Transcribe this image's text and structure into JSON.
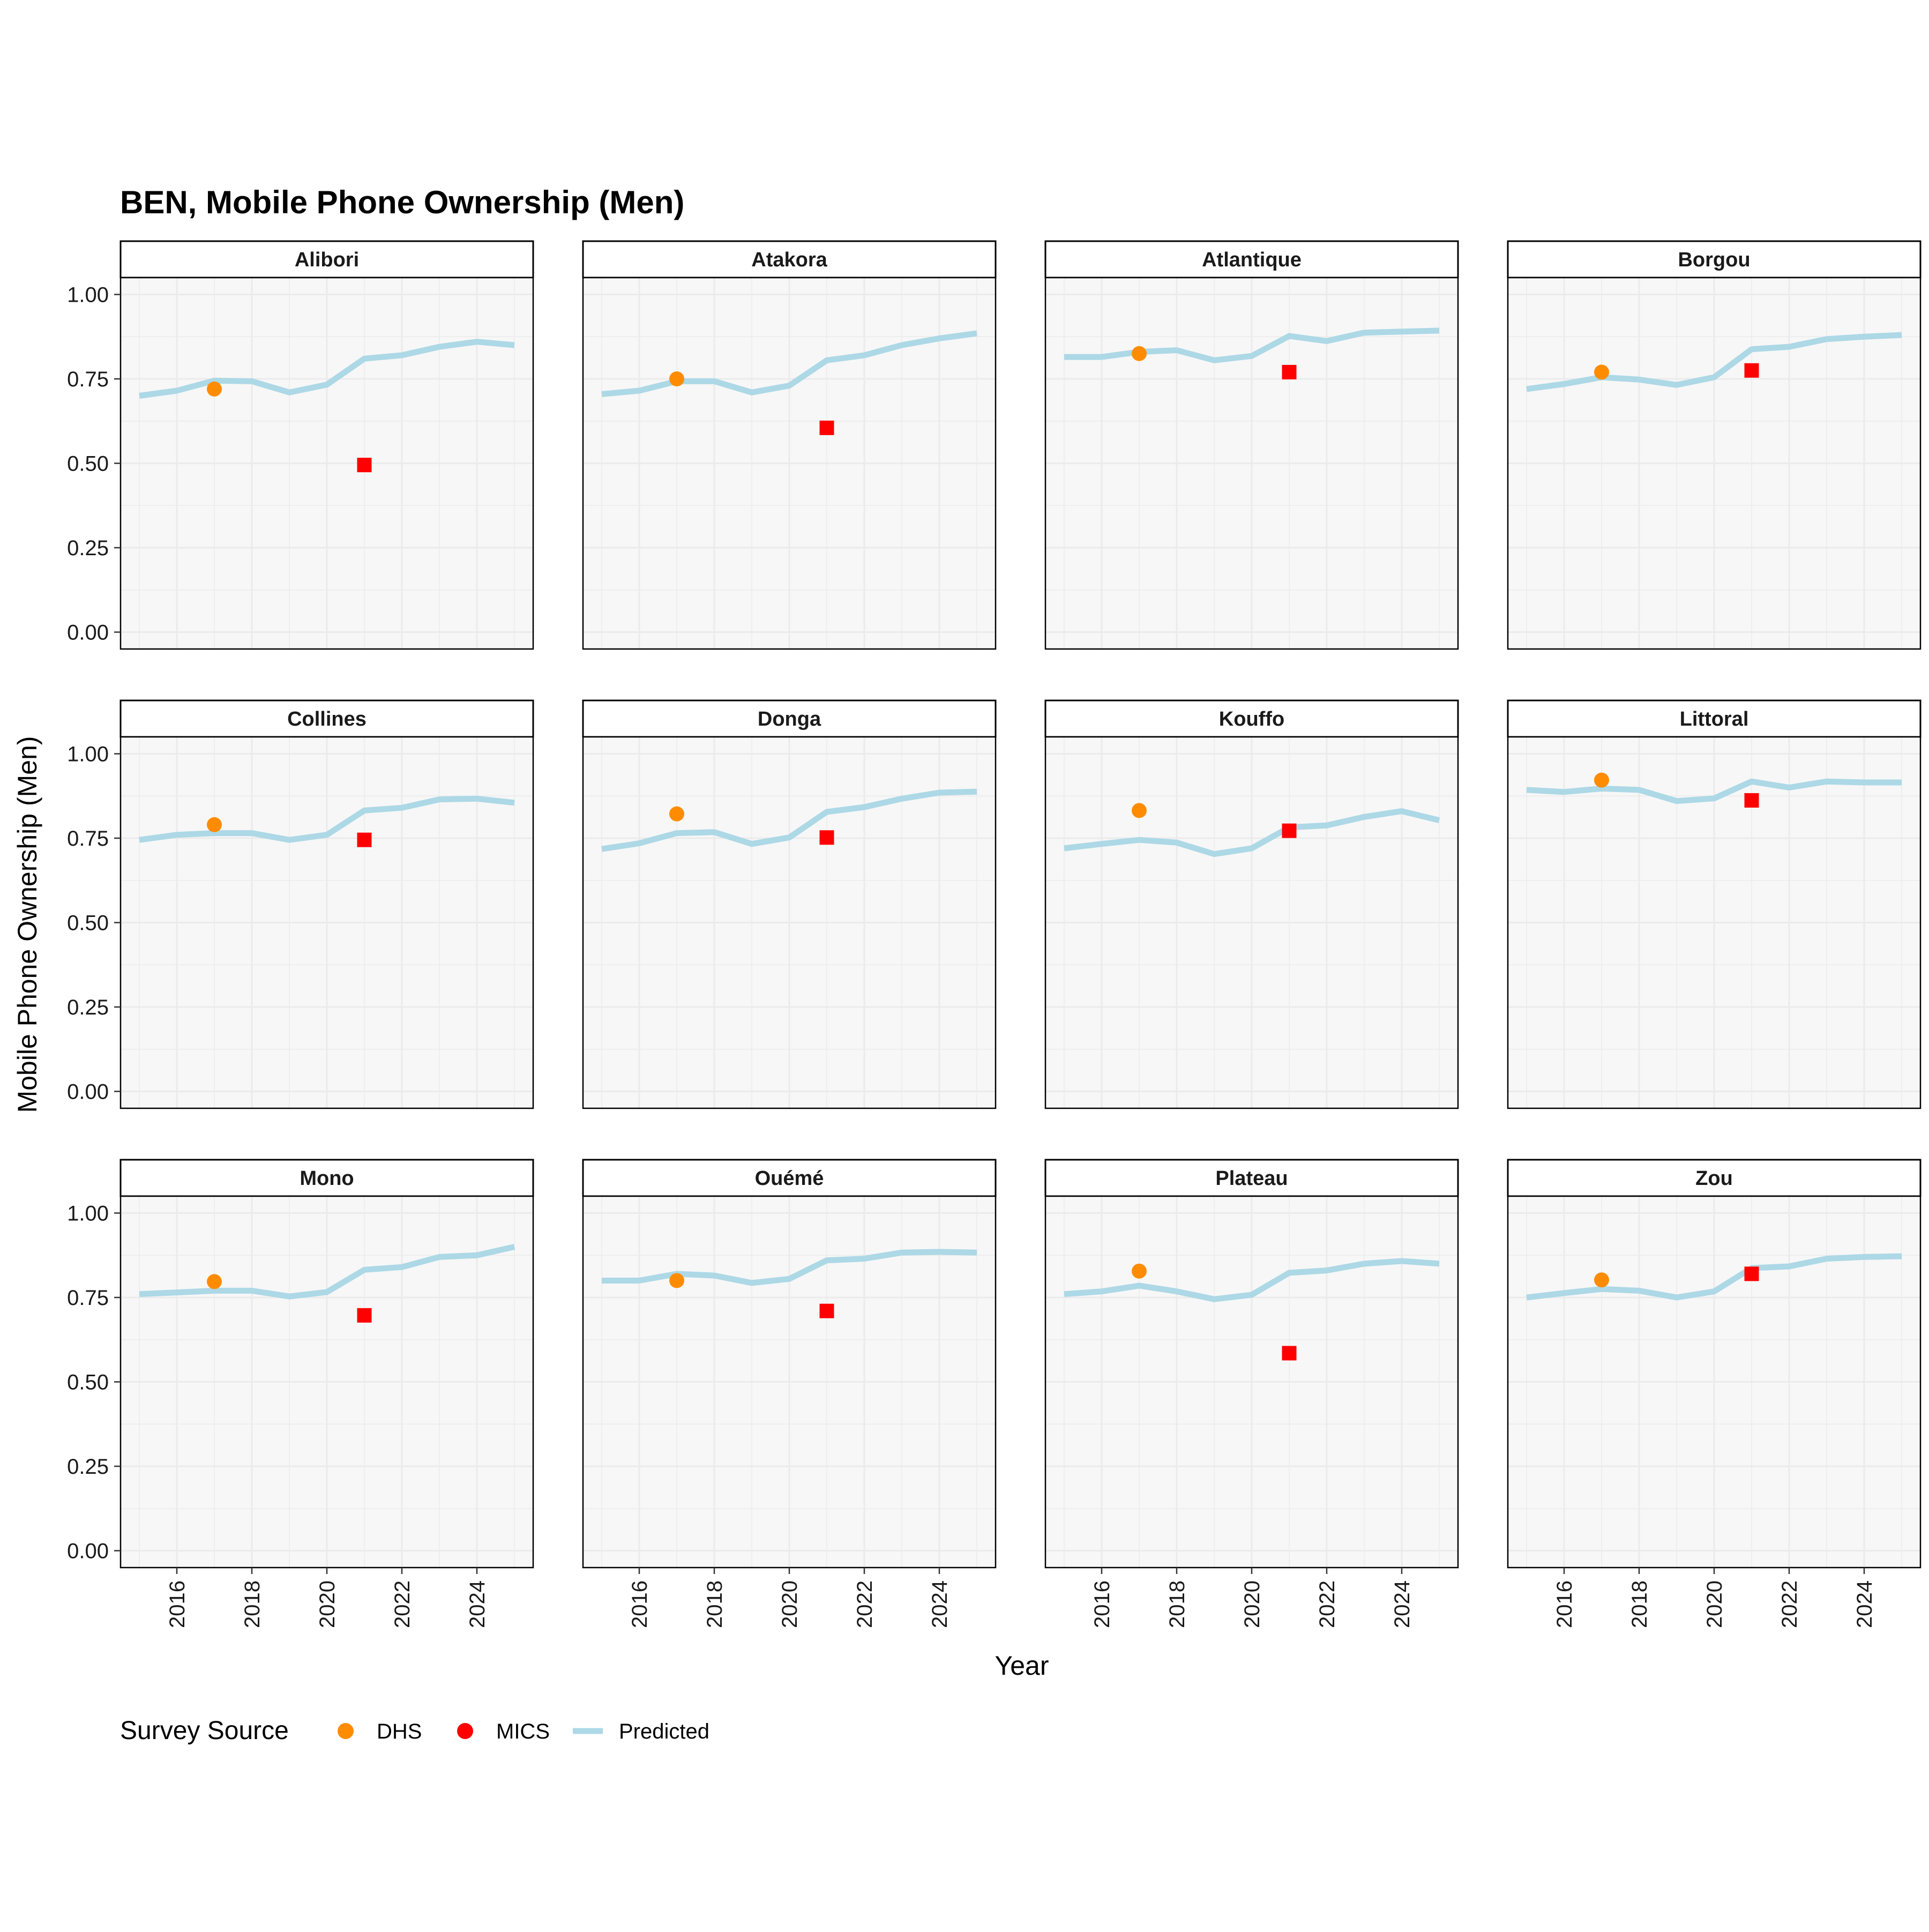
{
  "chart_data": {
    "type": "line",
    "title": "BEN, Mobile Phone Ownership (Men)",
    "xlabel": "Year",
    "ylabel": "Mobile Phone Ownership (Men)",
    "xlim": [
      2014.5,
      2025.5
    ],
    "ylim": [
      -0.05,
      1.05
    ],
    "x_ticks": [
      2016,
      2018,
      2020,
      2022,
      2024
    ],
    "x_tick_labels": [
      "2016",
      "2018",
      "2020",
      "2022",
      "2024"
    ],
    "y_ticks": [
      0,
      0.25,
      0.5,
      0.75,
      1
    ],
    "y_tick_labels": [
      "0.00",
      "0.25",
      "0.50",
      "0.75",
      "1.00"
    ],
    "grid": true,
    "legend": {
      "title": "Survey Source",
      "position": "bottom-left",
      "entries": [
        {
          "label": "DHS",
          "color": "#ff8c00",
          "shape": "circle"
        },
        {
          "label": "MICS",
          "color": "#ff0000",
          "shape": "circle"
        },
        {
          "label": "Predicted",
          "color": "#add8e6",
          "shape": "line"
        }
      ]
    },
    "colors": {
      "predicted": "#add8e6",
      "dhs": "#ff8c00",
      "mics": "#ff0000",
      "panel_bg": "#f7f7f7",
      "grid": "#ebebeb"
    },
    "predicted_years": [
      2015,
      2016,
      2017,
      2018,
      2019,
      2020,
      2021,
      2022,
      2023,
      2024,
      2025
    ],
    "panels": [
      {
        "name": "Alibori",
        "predicted": [
          0.7,
          0.715,
          0.745,
          0.743,
          0.71,
          0.733,
          0.81,
          0.82,
          0.845,
          0.86,
          0.85
        ],
        "dhs": {
          "x": 2017,
          "y": 0.72
        },
        "mics": {
          "x": 2021,
          "y": 0.495
        }
      },
      {
        "name": "Atakora",
        "predicted": [
          0.705,
          0.715,
          0.743,
          0.743,
          0.71,
          0.73,
          0.805,
          0.82,
          0.85,
          0.87,
          0.885
        ],
        "dhs": {
          "x": 2017,
          "y": 0.75
        },
        "mics": {
          "x": 2021,
          "y": 0.605
        }
      },
      {
        "name": "Atlantique",
        "predicted": [
          0.815,
          0.815,
          0.83,
          0.835,
          0.805,
          0.818,
          0.877,
          0.862,
          0.887,
          0.89,
          0.893
        ],
        "dhs": {
          "x": 2017,
          "y": 0.825
        },
        "mics": {
          "x": 2021,
          "y": 0.77
        }
      },
      {
        "name": "Borgou",
        "predicted": [
          0.72,
          0.735,
          0.755,
          0.748,
          0.732,
          0.755,
          0.838,
          0.845,
          0.868,
          0.875,
          0.88
        ],
        "dhs": {
          "x": 2017,
          "y": 0.77
        },
        "mics": {
          "x": 2021,
          "y": 0.775
        }
      },
      {
        "name": "Collines",
        "predicted": [
          0.745,
          0.76,
          0.765,
          0.765,
          0.745,
          0.76,
          0.832,
          0.84,
          0.865,
          0.867,
          0.855
        ],
        "dhs": {
          "x": 2017,
          "y": 0.79
        },
        "mics": {
          "x": 2021,
          "y": 0.745
        }
      },
      {
        "name": "Donga",
        "predicted": [
          0.718,
          0.735,
          0.765,
          0.768,
          0.733,
          0.752,
          0.828,
          0.842,
          0.867,
          0.885,
          0.888
        ],
        "dhs": {
          "x": 2017,
          "y": 0.822
        },
        "mics": {
          "x": 2021,
          "y": 0.752
        }
      },
      {
        "name": "Kouffo",
        "predicted": [
          0.72,
          0.733,
          0.745,
          0.737,
          0.703,
          0.72,
          0.782,
          0.788,
          0.813,
          0.83,
          0.803
        ],
        "dhs": {
          "x": 2017,
          "y": 0.832
        },
        "mics": {
          "x": 2021,
          "y": 0.772
        }
      },
      {
        "name": "Littoral",
        "predicted": [
          0.893,
          0.887,
          0.897,
          0.893,
          0.86,
          0.868,
          0.918,
          0.9,
          0.918,
          0.915,
          0.915
        ],
        "dhs": {
          "x": 2017,
          "y": 0.922
        },
        "mics": {
          "x": 2021,
          "y": 0.862
        }
      },
      {
        "name": "Mono",
        "predicted": [
          0.76,
          0.765,
          0.77,
          0.77,
          0.753,
          0.766,
          0.832,
          0.84,
          0.87,
          0.875,
          0.9
        ],
        "dhs": {
          "x": 2017,
          "y": 0.797
        },
        "mics": {
          "x": 2021,
          "y": 0.697
        }
      },
      {
        "name": "Ouémé",
        "predicted": [
          0.8,
          0.8,
          0.82,
          0.815,
          0.793,
          0.805,
          0.86,
          0.865,
          0.883,
          0.885,
          0.883
        ],
        "dhs": {
          "x": 2017,
          "y": 0.8
        },
        "mics": {
          "x": 2021,
          "y": 0.71
        }
      },
      {
        "name": "Plateau",
        "predicted": [
          0.76,
          0.768,
          0.785,
          0.768,
          0.745,
          0.758,
          0.823,
          0.83,
          0.85,
          0.858,
          0.85
        ],
        "dhs": {
          "x": 2017,
          "y": 0.828
        },
        "mics": {
          "x": 2021,
          "y": 0.585
        }
      },
      {
        "name": "Zou",
        "predicted": [
          0.75,
          0.763,
          0.775,
          0.77,
          0.75,
          0.768,
          0.837,
          0.842,
          0.865,
          0.87,
          0.872
        ],
        "dhs": {
          "x": 2017,
          "y": 0.802
        },
        "mics": {
          "x": 2021,
          "y": 0.82
        }
      }
    ]
  }
}
